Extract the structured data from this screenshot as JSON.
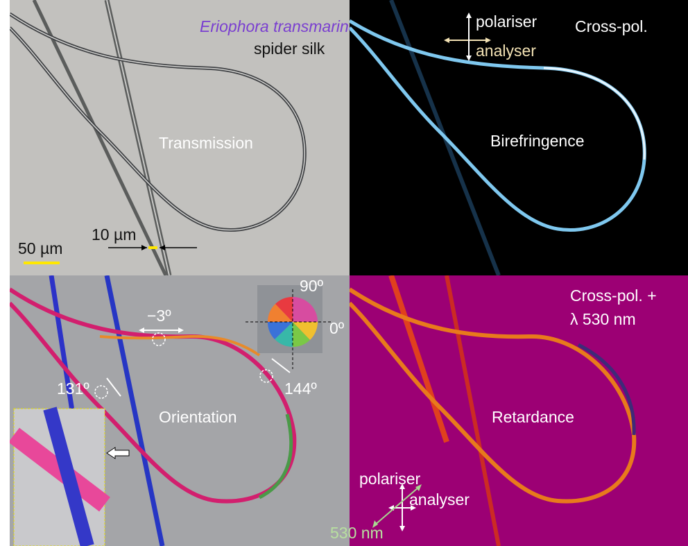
{
  "panels": {
    "transmission": {
      "label": "Transmission",
      "species": "Eriophora transmarina",
      "subtitle": "spider silk",
      "scale_bar": "50 µm",
      "width_marker": "10 µm"
    },
    "birefringence": {
      "label": "Birefringence",
      "mode": "Cross-pol.",
      "polariser": "polariser",
      "analyser": "analyser"
    },
    "orientation": {
      "label": "Orientation",
      "wheel_top": "90º",
      "wheel_right": "0º",
      "angle_a": "−3º",
      "angle_b": "131º",
      "angle_c": "144º"
    },
    "retardance": {
      "label": "Retardance",
      "mode_line1": "Cross-pol. +",
      "mode_line2": "λ 530 nm",
      "polariser": "polariser",
      "analyser": "analyser",
      "plate": "530 nm"
    }
  },
  "colors": {
    "transmission_bg": "#c2c1be",
    "birefringence_bg": "#000000",
    "orientation_bg": "#a4a5a8",
    "retardance_bg": "#9c0074",
    "species_text": "#7a3fd0",
    "scale_bar": "#ffe800",
    "analyser_text": "#f3e2b4"
  }
}
